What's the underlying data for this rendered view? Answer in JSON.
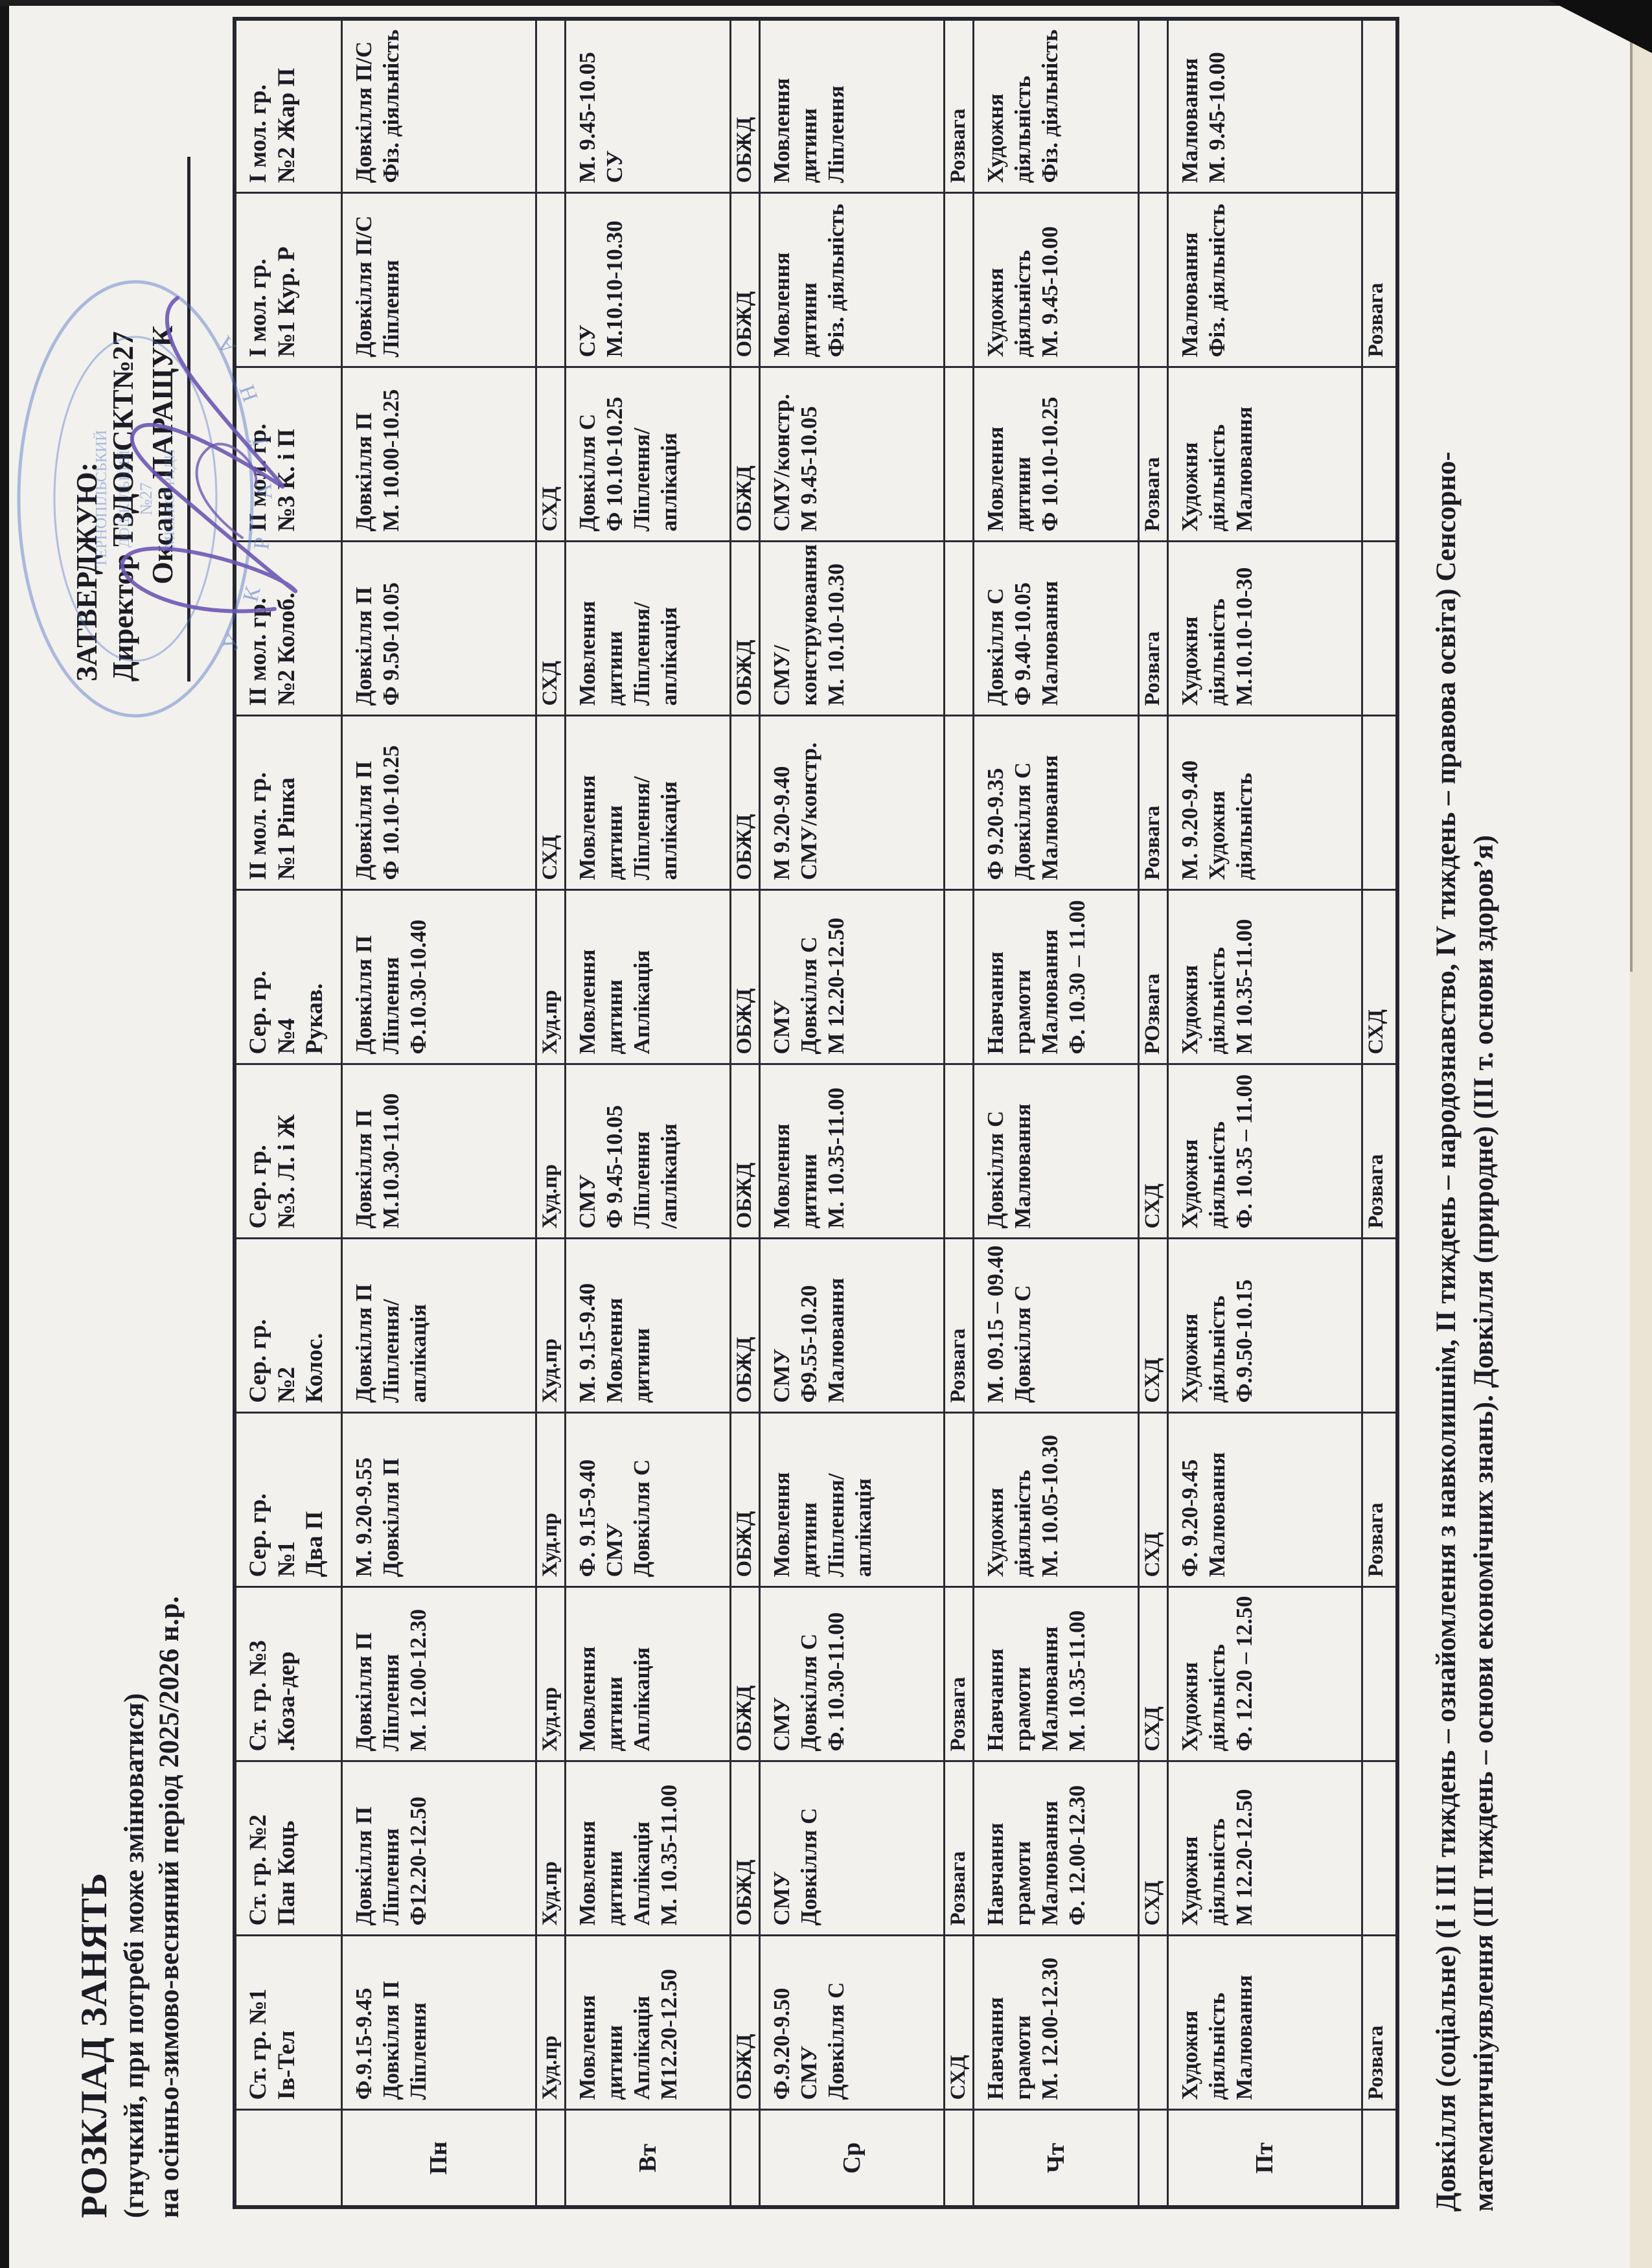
{
  "approval": {
    "line1": "ЗАТВЕРДЖУЮ:",
    "line2": "Директор ТЗДОЯСКТ№27",
    "name": "Оксана ПАРАЩУК"
  },
  "stamp": {
    "ring": "У К Р А Ї Н А",
    "inner": [
      "ТЕРНОПІЛЬСЬКИЙ",
      "ДОШКІЛЬНИЙ",
      "№27",
      "МІСЬКОЇ РАДИ"
    ]
  },
  "title": {
    "line1": "РОЗКЛАД ЗАНЯТЬ",
    "line2": "(гнучкий, при потребі може змінюватися)",
    "line3": "на осінньо-зимово-весняний період 2025/2026 н.р."
  },
  "table": {
    "corner": "",
    "day_labels": [
      "Пн",
      "Вт",
      "Ср",
      "Чт",
      "Пт"
    ],
    "groups": [
      "Ст. гр. №1\nІв-Тел",
      "Ст. гр. №2\nПан Коць",
      "Ст. гр. №3\n.Коза-дер",
      "Сер. гр.\n№1\nДва П",
      "Сер. гр.\n№2\nКолос.",
      "Сер. гр.\n№3. Л. і Ж",
      "Сер. гр.\n№4\nРукав.",
      "ІІ мол. гр.\n№1 Ріпка",
      "ІІ мол. гр.\n№2 Колоб.",
      "ІІ мол. гр.\n№3 К. і П",
      "І мол. гр.\n№1 Кур. Р",
      "І мол. гр.\n№2 Жар П"
    ],
    "rows": [
      {
        "type": "day",
        "label": "Пн",
        "cells": [
          "Ф.9.15-9.45\nДовкілля П\nЛіплення",
          "Довкілля П\nЛіплення\nФ12.20-12.50",
          "Довкілля П\nЛіплення\nМ. 12.00-12.30",
          "М. 9.20-9.55\nДовкілля П",
          "Довкілля П\nЛіплення/аплікація",
          "Довкілля П\nМ.10.30-11.00",
          "Довкілля П\nЛіплення\nФ.10.30-10.40",
          "Довкілля П\nФ 10.10-10.25",
          "Довкілля П\nФ 9.50-10.05",
          "Довкілля П\nМ. 10.00-10.25",
          "Довкілля П/С\nЛіплення",
          "Довкілля П/С\nФіз. діяльність"
        ]
      },
      {
        "type": "sub",
        "label": "",
        "cells": [
          "Худ.пр",
          "Худ.пр",
          "Худ.пр",
          "Худ.пр",
          "Худ.пр",
          "Худ.пр",
          "Худ.пр",
          "СХД",
          "СХД",
          "СХД",
          "",
          ""
        ]
      },
      {
        "type": "day",
        "label": "Вт",
        "cells": [
          "Мовлення дитини\nАплікація\nМ12.20-12.50",
          "Мовлення дитини\nАплікація\nМ. 10.35-11.00",
          "Мовлення дитини\nАплікація",
          "Ф. 9.15-9.40\nСМУ\nДовкілля С",
          "М. 9.15-9.40\nМовлення дитини",
          "СМУ\nФ 9.45-10.05\nЛіплення\n/аплікація",
          "Мовлення дитини\nАплікація",
          "Мовлення дитини\nЛіплення/аплікація",
          "Мовлення дитини\nЛіплення/аплікація",
          "Довкілля С\nФ 10.10-10.25\nЛіплення/аплікація",
          "СУ\nМ.10.10-10.30",
          "М. 9.45-10.05\nСУ"
        ]
      },
      {
        "type": "sub",
        "label": "",
        "cells": [
          "ОБЖД",
          "ОБЖД",
          "ОБЖД",
          "ОБЖД",
          "ОБЖД",
          "ОБЖД",
          "ОБЖД",
          "ОБЖД",
          "ОБЖД",
          "ОБЖД",
          "ОБЖД",
          "ОБЖД"
        ]
      },
      {
        "type": "day",
        "label": "Ср",
        "cells": [
          "Ф.9.20-9.50\nСМУ\nДовкілля С",
          "СМУ\nДовкілля С",
          "СМУ\nДовкілля С\nФ. 10.30-11.00",
          "Мовлення дитини\nЛіплення/аплікація",
          "СМУ\nФ9.55-10.20\nМалювання",
          "Мовлення дитини\nМ. 10.35-11.00",
          "СМУ\nДовкілля С\nМ 12.20-12.50",
          "М 9.20-9.40\nСМУ/констр.",
          "СМУ/конструювання\nМ. 10.10-10.30",
          "СМУ/констр.\nМ 9.45-10.05",
          "Мовлення дитини\nФіз. діяльність",
          "Мовлення дитини\nЛіплення"
        ]
      },
      {
        "type": "sub",
        "label": "",
        "cells": [
          "СХД",
          "Розвага",
          "Розвага",
          "",
          "Розвага",
          "",
          "",
          "",
          "",
          "",
          "",
          "Розвага"
        ]
      },
      {
        "type": "day",
        "label": "Чт",
        "cells": [
          "Навчання грамоти\nМ. 12.00-12.30",
          "Навчання грамоти\nМалювання\nФ. 12.00-12.30",
          "Навчання грамоти\nМалювання\nМ. 10.35-11.00",
          "Художня діяльність\nМ. 10.05-10.30",
          "М. 09.15 – 09.40\nДовкілля С",
          "Довкілля С\nМалювання",
          "Навчання грамоти\nМалювання\nФ. 10.30 – 11.00",
          "Ф 9.20-9.35\nДовкілля С\nМалювання",
          "Довкілля С\nФ 9.40-10.05\nМалювання",
          "Мовлення дитини\nФ 10.10-10.25",
          "Художня діяльність\nМ. 9.45-10.00",
          "Художня діяльність\nФіз. діяльність"
        ]
      },
      {
        "type": "sub",
        "label": "",
        "cells": [
          "",
          "СХД",
          "СХД",
          "СХД",
          "СХД",
          "СХД",
          "РОзвага",
          "Розвага",
          "Розвага",
          "Розвага",
          "",
          ""
        ]
      },
      {
        "type": "day",
        "label": "Пт",
        "cells": [
          "Художня діяльність\nМалювання",
          "Художня діяльність\nМ 12.20-12.50",
          "Художня діяльність\nФ. 12.20 – 12.50",
          "Ф. 9.20-9.45\nМалювання",
          "Художня діяльність\nФ.9.50-10.15",
          "Художня діяльність\nФ. 10.35 – 11.00",
          "Художня діяльність\nМ 10.35-11.00",
          "М. 9.20-9.40\nХудожня діяльність",
          "Художня діяльність\nМ.10.10-10-30",
          "Художня діяльність\nМалювання",
          "Малювання\nФіз. діяльність",
          "Малювання\nМ. 9.45-10.00"
        ]
      },
      {
        "type": "sub",
        "label": "",
        "cells": [
          "Розвага",
          "",
          "",
          "Розвага",
          "",
          "Розвага",
          "СХД",
          "",
          "",
          "",
          "Розвага",
          ""
        ]
      }
    ]
  },
  "notes": {
    "line1": "Довкілля (соціальне) (І і ІІІ тиждень – ознайомлення з навколишнім, ІІ тиждень – народознавство, IV тиждень – правова освіта) Сенсорно-",
    "line2": "математичніуявлення (ІІІ тиждень – основи економічних знань). Довкілля (природне) (ІІІ т. основи здоров’я)"
  },
  "colors": {
    "paper": "#f2f1ee",
    "ink": "#1c1c24",
    "table_line": "#2b2b33",
    "stamp_blue": "#4f6fc5",
    "signature_purple": "#6d57b2",
    "scan_edge": "#141414",
    "paper_edge": "#ebe4d4"
  }
}
